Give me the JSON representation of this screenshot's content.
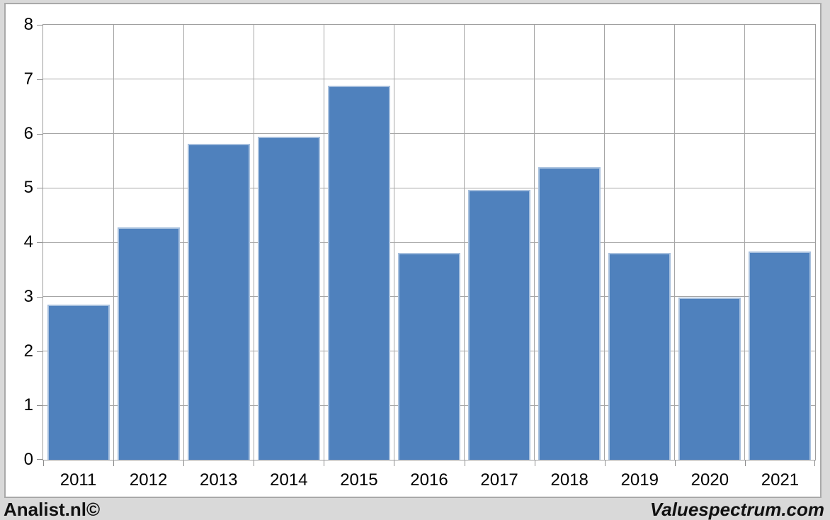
{
  "footer": {
    "left": "Analist.nl©",
    "right": "Valuespectrum.com"
  },
  "chart_data": {
    "type": "bar",
    "title": "",
    "xlabel": "",
    "ylabel": "",
    "categories": [
      "2011",
      "2012",
      "2013",
      "2014",
      "2015",
      "2016",
      "2017",
      "2018",
      "2019",
      "2020",
      "2021"
    ],
    "values": [
      2.86,
      4.27,
      5.81,
      5.94,
      6.88,
      3.81,
      4.96,
      5.38,
      3.8,
      2.98,
      3.83
    ],
    "ylim": [
      0,
      8
    ],
    "ytick_interval": 1,
    "y_tick_labels": [
      "0",
      "1",
      "2",
      "3",
      "4",
      "5",
      "6",
      "7",
      "8"
    ],
    "grid": true,
    "legend": false,
    "colors": {
      "bar_fill": "#4f81bd",
      "bar_border_highlight": "#c8d8eb",
      "gridline": "#a6a6a6",
      "axis_text": "#000000",
      "panel_border": "#a9a9a9",
      "background": "#d9d9d9"
    }
  }
}
